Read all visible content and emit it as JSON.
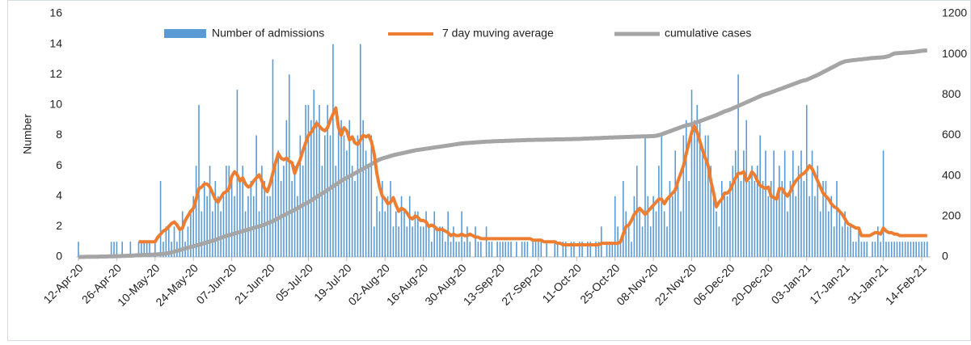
{
  "chart_data": {
    "type": "bar_line",
    "ylabel": "Number",
    "categories": [
      "12-Apr-20",
      null,
      null,
      null,
      null,
      null,
      null,
      null,
      null,
      null,
      null,
      null,
      null,
      null,
      "26-Apr-20",
      null,
      null,
      null,
      null,
      null,
      null,
      null,
      null,
      null,
      null,
      null,
      null,
      null,
      "10-May-20",
      null,
      null,
      null,
      null,
      null,
      null,
      null,
      null,
      null,
      null,
      null,
      null,
      null,
      "24-May-20",
      null,
      null,
      null,
      null,
      null,
      null,
      null,
      null,
      null,
      null,
      null,
      null,
      null,
      "07-Jun-20",
      null,
      null,
      null,
      null,
      null,
      null,
      null,
      null,
      null,
      null,
      null,
      null,
      null,
      "21-Jun-20",
      null,
      null,
      null,
      null,
      null,
      null,
      null,
      null,
      null,
      null,
      null,
      null,
      null,
      "05-Jul-20",
      null,
      null,
      null,
      null,
      null,
      null,
      null,
      null,
      null,
      null,
      null,
      null,
      null,
      "19-Jul-20",
      null,
      null,
      null,
      null,
      null,
      null,
      null,
      null,
      null,
      null,
      null,
      null,
      null,
      "02-Aug-20",
      null,
      null,
      null,
      null,
      null,
      null,
      null,
      null,
      null,
      null,
      null,
      null,
      null,
      "16-Aug-20",
      null,
      null,
      null,
      null,
      null,
      null,
      null,
      null,
      null,
      null,
      null,
      null,
      null,
      "30-Aug-20",
      null,
      null,
      null,
      null,
      null,
      null,
      null,
      null,
      null,
      null,
      null,
      null,
      null,
      "13-Sep-20",
      null,
      null,
      null,
      null,
      null,
      null,
      null,
      null,
      null,
      null,
      null,
      null,
      null,
      "27-Sep-20",
      null,
      null,
      null,
      null,
      null,
      null,
      null,
      null,
      null,
      null,
      null,
      null,
      null,
      "11-Oct-20",
      null,
      null,
      null,
      null,
      null,
      null,
      null,
      null,
      null,
      null,
      null,
      null,
      null,
      "25-Oct-20",
      null,
      null,
      null,
      null,
      null,
      null,
      null,
      null,
      null,
      null,
      null,
      null,
      null,
      "08-Nov-20",
      null,
      null,
      null,
      null,
      null,
      null,
      null,
      null,
      null,
      null,
      null,
      null,
      null,
      "22-Nov-20",
      null,
      null,
      null,
      null,
      null,
      null,
      null,
      null,
      null,
      null,
      null,
      null,
      null,
      "06-Dec-20",
      null,
      null,
      null,
      null,
      null,
      null,
      null,
      null,
      null,
      null,
      null,
      null,
      null,
      "20-Dec-20",
      null,
      null,
      null,
      null,
      null,
      null,
      null,
      null,
      null,
      null,
      null,
      null,
      null,
      "03-Jan-21",
      null,
      null,
      null,
      null,
      null,
      null,
      null,
      null,
      null,
      null,
      null,
      null,
      null,
      "17-Jan-21",
      null,
      null,
      null,
      null,
      null,
      null,
      null,
      null,
      null,
      null,
      null,
      null,
      null,
      "31-Jan-21",
      null,
      null,
      null,
      null,
      null,
      null,
      null,
      null,
      null,
      null,
      null,
      null,
      null,
      "14-Feb-21",
      null,
      null
    ],
    "series": [
      {
        "name": "Number of admissions",
        "kind": "bar",
        "color": "#5b9bd5",
        "values": [
          1,
          0,
          0,
          0,
          0,
          0,
          0,
          0,
          0,
          0,
          0,
          0,
          1,
          1,
          1,
          0,
          1,
          0,
          0,
          1,
          0,
          0,
          1,
          1,
          1,
          1,
          1,
          0,
          1,
          0,
          5,
          1,
          2,
          2,
          1,
          2,
          1,
          2,
          3,
          1,
          2,
          3,
          4,
          6,
          10,
          3,
          5,
          4,
          6,
          3,
          5,
          4,
          3,
          4,
          6,
          6,
          5,
          4,
          11,
          5,
          6,
          3,
          4,
          5,
          4,
          8,
          3,
          6,
          5,
          4,
          4,
          13,
          6,
          7,
          5,
          6,
          9,
          12,
          5,
          6,
          4,
          8,
          6,
          10,
          10,
          9,
          11,
          9,
          10,
          6,
          8,
          10,
          8,
          14,
          6,
          9,
          9,
          8,
          7,
          9,
          6,
          5,
          8,
          14,
          9,
          7,
          6,
          8,
          2,
          4,
          3,
          5,
          3,
          4,
          5,
          2,
          3,
          2,
          4,
          3,
          2,
          4,
          2,
          3,
          3,
          2,
          2,
          3,
          2,
          1,
          3,
          2,
          2,
          2,
          1,
          3,
          1,
          2,
          1,
          1,
          3,
          1,
          2,
          1,
          0,
          2,
          1,
          1,
          0,
          2,
          1,
          1,
          0,
          1,
          1,
          1,
          1,
          1,
          1,
          0,
          1,
          0,
          1,
          1,
          1,
          0,
          1,
          1,
          1,
          1,
          0,
          1,
          0,
          0,
          1,
          1,
          0,
          1,
          1,
          0,
          1,
          1,
          0,
          1,
          1,
          0,
          1,
          1,
          0,
          1,
          1,
          2,
          0,
          1,
          1,
          1,
          4,
          2,
          1,
          5,
          3,
          2,
          1,
          4,
          6,
          3,
          2,
          8,
          4,
          2,
          4,
          3,
          6,
          8,
          3,
          2,
          5,
          4,
          7,
          5,
          3,
          8,
          9,
          5,
          11,
          9,
          10,
          9,
          7,
          8,
          8,
          6,
          4,
          3,
          2,
          5,
          4,
          4,
          5,
          6,
          7,
          12,
          5,
          7,
          9,
          5,
          6,
          5,
          6,
          8,
          5,
          7,
          4,
          5,
          7,
          4,
          6,
          5,
          7,
          3,
          5,
          7,
          4,
          6,
          7,
          5,
          10,
          4,
          7,
          4,
          6,
          3,
          5,
          5,
          3,
          4,
          2,
          5,
          3,
          2,
          3,
          2,
          2,
          1,
          1,
          2,
          1,
          1,
          1,
          0,
          1,
          1,
          2,
          1,
          7,
          1,
          1,
          1,
          1,
          1,
          1,
          1,
          1,
          1,
          1,
          1,
          1,
          1,
          1,
          1,
          1
        ]
      },
      {
        "name": "7 day muving average",
        "kind": "line",
        "color": "#ed7d31",
        "values": [
          null,
          null,
          null,
          null,
          null,
          null,
          null,
          null,
          null,
          null,
          null,
          null,
          null,
          null,
          null,
          null,
          null,
          null,
          null,
          null,
          null,
          null,
          1,
          1,
          1,
          1,
          1,
          1,
          1,
          1.3,
          1.5,
          1.7,
          1.8,
          2,
          2.2,
          2.3,
          2.1,
          1.8,
          1.9,
          2.4,
          2.7,
          3,
          3.2,
          3.8,
          4.5,
          4.6,
          4.8,
          4.8,
          4.6,
          4.2,
          3.8,
          3.6,
          3.9,
          4.2,
          4.3,
          4.5,
          5.3,
          5.6,
          5.4,
          5.0,
          5.2,
          4.8,
          4.6,
          4.7,
          5.0,
          5.2,
          5.4,
          5.0,
          4.5,
          4.3,
          4.8,
          5.5,
          6.2,
          6.8,
          6.5,
          6.4,
          6.5,
          6.3,
          6.2,
          5.5,
          6.0,
          6.4,
          7.0,
          7.5,
          8.0,
          8.2,
          8.5,
          8.8,
          8.6,
          8.4,
          8.3,
          8.5,
          9.0,
          9.4,
          9.8,
          8.5,
          8.0,
          8.5,
          8.3,
          7.7,
          7.9,
          7.5,
          7.4,
          7.7,
          8.0,
          7.9,
          8.0,
          7.6,
          6.8,
          5.5,
          4.6,
          4.0,
          3.8,
          3.5,
          3.6,
          3.9,
          3.4,
          3.0,
          3.2,
          3.1,
          2.9,
          2.6,
          2.5,
          2.7,
          2.6,
          2.4,
          2.4,
          2.3,
          2.0,
          2.1,
          2.0,
          1.8,
          1.8,
          1.8,
          1.7,
          1.6,
          1.4,
          1.5,
          1.4,
          1.4,
          1.5,
          1.4,
          1.4,
          1.5,
          1.4,
          1.3,
          1.3,
          1.2,
          1.2,
          1.2,
          1.2,
          1.2,
          1.2,
          1.2,
          1.2,
          1.2,
          1.2,
          1.2,
          1.2,
          1.2,
          1.2,
          1.2,
          1.2,
          1.2,
          1.2,
          1.2,
          1.1,
          1.1,
          1.1,
          1.1,
          1.0,
          1.0,
          1.0,
          1.0,
          1.0,
          0.9,
          0.9,
          0.8,
          0.8,
          0.8,
          0.8,
          0.8,
          0.8,
          0.8,
          0.8,
          0.8,
          0.8,
          0.8,
          0.8,
          0.8,
          0.8,
          0.9,
          0.9,
          0.9,
          0.9,
          0.9,
          0.9,
          0.9,
          1.0,
          1.5,
          2.0,
          2.1,
          2.4,
          2.8,
          3.0,
          3.2,
          3.0,
          2.8,
          3.0,
          3.2,
          3.4,
          3.6,
          3.8,
          3.8,
          3.5,
          3.8,
          4.0,
          4.2,
          4.4,
          5.0,
          5.5,
          6.0,
          6.8,
          7.5,
          8.2,
          8.6,
          8.2,
          7.6,
          7.0,
          6.5,
          6.0,
          5.0,
          4.2,
          3.3,
          3.6,
          3.8,
          4.2,
          4.2,
          4.4,
          4.8,
          5.2,
          5.5,
          5.5,
          5.6,
          5.0,
          5.2,
          5.6,
          5.4,
          5.0,
          4.7,
          4.6,
          4.5,
          4.6,
          4.0,
          3.9,
          3.8,
          4.5,
          4.5,
          4.2,
          4.0,
          4.3,
          4.7,
          5.0,
          5.2,
          5.4,
          5.5,
          5.7,
          6.0,
          5.8,
          5.4,
          5.0,
          4.6,
          4.2,
          4.0,
          3.8,
          3.5,
          3.3,
          3.2,
          3.0,
          2.8,
          2.5,
          2.2,
          2.1,
          2.0,
          1.9,
          1.9,
          1.4,
          1.4,
          1.4,
          1.4,
          1.5,
          1.6,
          1.6,
          1.5,
          1.9,
          1.7,
          1.6,
          1.6,
          1.5,
          1.5,
          1.4,
          1.4,
          1.4,
          1.4,
          1.4,
          1.4,
          1.4,
          1.4,
          1.4,
          1.4,
          1.4
        ]
      },
      {
        "name": "cumulative cases",
        "kind": "line",
        "axis": "y2",
        "color": "#a5a5a5",
        "values": [
          0,
          0,
          0,
          1,
          1,
          1,
          1,
          1,
          2,
          2,
          2,
          3,
          3,
          3,
          4,
          4,
          5,
          5,
          6,
          6,
          7,
          8,
          8,
          9,
          10,
          10,
          11,
          11,
          12,
          13,
          14,
          15,
          17,
          19,
          22,
          26,
          30,
          34,
          38,
          42,
          46,
          49,
          52,
          56,
          60,
          64,
          68,
          72,
          76,
          80,
          84,
          89,
          94,
          99,
          104,
          107,
          111,
          115,
          119,
          123,
          127,
          131,
          135,
          139,
          143,
          147,
          151,
          155,
          160,
          166,
          171,
          177,
          184,
          191,
          198,
          205,
          212,
          219,
          226,
          233,
          240,
          248,
          256,
          263,
          270,
          278,
          287,
          296,
          305,
          313,
          321,
          330,
          339,
          348,
          357,
          366,
          375,
          383,
          390,
          398,
          405,
          413,
          420,
          428,
          435,
          443,
          450,
          458,
          466,
          474,
          481,
          486,
          490,
          494,
          498,
          502,
          505,
          508,
          511,
          514,
          517,
          520,
          523,
          526,
          528,
          530,
          532,
          534,
          536,
          538,
          540,
          542,
          544,
          546,
          548,
          550,
          552,
          554,
          556,
          558,
          560,
          561,
          562,
          563,
          564,
          565,
          566,
          567,
          568,
          569,
          569,
          570,
          571,
          571,
          572,
          572,
          573,
          573,
          574,
          574,
          575,
          575,
          576,
          576,
          577,
          577,
          577,
          578,
          578,
          578,
          578,
          579,
          579,
          579,
          580,
          580,
          580,
          580,
          581,
          581,
          581,
          582,
          582,
          582,
          583,
          584,
          584,
          585,
          585,
          586,
          586,
          587,
          588,
          588,
          589,
          589,
          590,
          590,
          591,
          591,
          592,
          592,
          593,
          593,
          594,
          594,
          595,
          595,
          595,
          596,
          596,
          598,
          601,
          605,
          610,
          615,
          620,
          625,
          630,
          635,
          640,
          645,
          649,
          652,
          655,
          660,
          665,
          670,
          675,
          680,
          685,
          690,
          695,
          700,
          706,
          712,
          718,
          722,
          727,
          733,
          739,
          745,
          751,
          757,
          763,
          769,
          775,
          781,
          787,
          793,
          799,
          803,
          807,
          812,
          817,
          822,
          827,
          832,
          837,
          842,
          847,
          852,
          857,
          862,
          867,
          871,
          874,
          880,
          886,
          892,
          898,
          905,
          912,
          919,
          926,
          933,
          940,
          947,
          954,
          960,
          965,
          967,
          969,
          971,
          972,
          974,
          975,
          977,
          978,
          980,
          981,
          982,
          983,
          984,
          985,
          988,
          991,
          998,
          1004,
          1005,
          1006,
          1007,
          1008,
          1009,
          1010,
          1011,
          1013,
          1015,
          1017,
          1018,
          1019
        ]
      }
    ],
    "ylim": [
      0,
      16
    ],
    "yticks": [
      0,
      2,
      4,
      6,
      8,
      10,
      12,
      14,
      16
    ],
    "y2lim": [
      0,
      1200
    ],
    "y2ticks": [
      0,
      200,
      400,
      600,
      800,
      1000,
      1200
    ],
    "grid": false
  }
}
